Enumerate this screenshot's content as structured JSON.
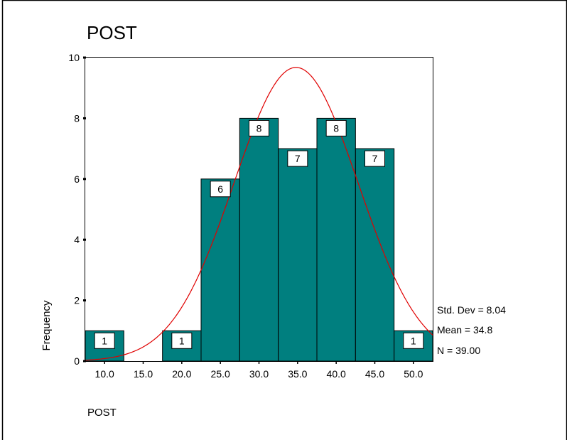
{
  "chart_data": {
    "type": "bar",
    "title": "POST",
    "xlabel": "POST",
    "ylabel": "Frequency",
    "categories": [
      "10.0",
      "15.0",
      "20.0",
      "25.0",
      "30.0",
      "35.0",
      "40.0",
      "45.0",
      "50.0"
    ],
    "bin_width": 5,
    "values": [
      1,
      0,
      1,
      6,
      8,
      7,
      8,
      7,
      1
    ],
    "data_labels": [
      "1",
      "",
      "1",
      "6",
      "8",
      "7",
      "8",
      "7",
      "1"
    ],
    "ylim": [
      0,
      10
    ],
    "yticks": [
      "0",
      "2",
      "4",
      "6",
      "8",
      "10"
    ],
    "xlim": [
      7.5,
      52.5
    ],
    "normal_curve": {
      "mean": 34.8,
      "std": 8.04,
      "n": 39
    },
    "stats": [
      "Std. Dev = 8.04",
      "Mean = 34.8",
      "N = 39.00"
    ],
    "grid": false,
    "colors": {
      "bar_fill": "#007F7F",
      "bar_stroke": "#000000",
      "curve": "#E00000"
    }
  }
}
